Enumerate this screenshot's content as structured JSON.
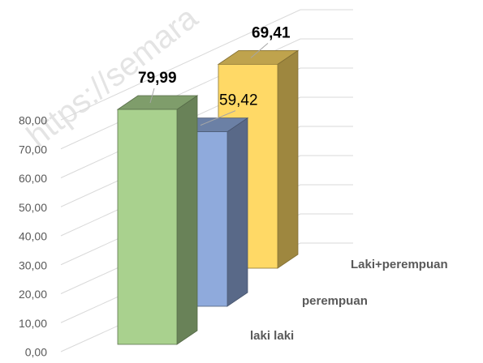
{
  "chart_data": {
    "type": "bar3d",
    "watermark": "https://semara",
    "categories": [
      "laki laki",
      "perempuan",
      "Laki+perempuan"
    ],
    "values": [
      79.99,
      59.42,
      69.41
    ],
    "value_labels": [
      "79,99",
      "59,42",
      "69,41"
    ],
    "colors": [
      "#a9d18e",
      "#8faadc",
      "#ffd966"
    ],
    "ylim": [
      0,
      80
    ],
    "yticks": [
      {
        "value": 0,
        "label": "0,00"
      },
      {
        "value": 10,
        "label": "10,00"
      },
      {
        "value": 20,
        "label": "20,00"
      },
      {
        "value": 30,
        "label": "30,00"
      },
      {
        "value": 40,
        "label": "40,00"
      },
      {
        "value": 50,
        "label": "50,00"
      },
      {
        "value": 60,
        "label": "60,00"
      },
      {
        "value": 70,
        "label": "70,00"
      },
      {
        "value": 80,
        "label": "80,00"
      }
    ],
    "grid": true
  }
}
